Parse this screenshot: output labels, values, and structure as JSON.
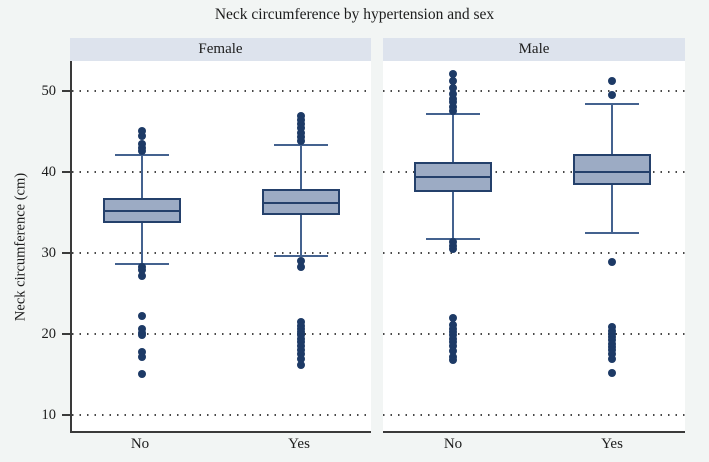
{
  "chart_data": {
    "type": "boxplot",
    "title": "Neck circumference by hypertension and sex",
    "ylabel": "Neck circumference (cm)",
    "xlabel": "",
    "ylim": [
      8,
      53.7
    ],
    "yticks": [
      10,
      20,
      30,
      40,
      50
    ],
    "grid": "horizontal dotted lines at each y tick",
    "legend": "none",
    "categories": [
      "No",
      "Yes"
    ],
    "panels": [
      {
        "label": "Female",
        "boxes": [
          {
            "category": "No",
            "whisker_low": 28.6,
            "q1": 33.7,
            "median": 35.2,
            "q3": 36.8,
            "whisker_high": 42.1,
            "outliers_high": [
              42.6,
              43.0,
              43.5,
              44.4,
              45.1
            ],
            "outliers_low": [
              28.3,
              27.9,
              27.2,
              22.2,
              20.6,
              20.1,
              19.8,
              17.7,
              17.1,
              15.1
            ]
          },
          {
            "category": "Yes",
            "whisker_low": 29.6,
            "q1": 34.7,
            "median": 36.2,
            "q3": 37.9,
            "whisker_high": 43.3,
            "outliers_high": [
              43.8,
              44.3,
              44.8,
              45.4,
              45.9,
              46.4,
              46.9
            ],
            "outliers_low": [
              29.0,
              28.3,
              21.5,
              21.0,
              20.6,
              20.2,
              19.8,
              19.4,
              19.0,
              18.5,
              18.0,
              17.5,
              16.9,
              16.2
            ]
          }
        ]
      },
      {
        "label": "Male",
        "boxes": [
          {
            "category": "No",
            "whisker_low": 31.7,
            "q1": 37.5,
            "median": 39.4,
            "q3": 41.2,
            "whisker_high": 47.2,
            "outliers_high": [
              47.5,
              48.0,
              48.6,
              49.0,
              49.6,
              50.4,
              51.2,
              52.1
            ],
            "outliers_low": [
              31.4,
              30.9,
              30.5,
              21.9,
              21.1,
              20.6,
              20.2,
              19.8,
              19.4,
              19.0,
              18.5,
              17.9,
              17.2,
              16.8
            ]
          },
          {
            "category": "Yes",
            "whisker_low": 32.4,
            "q1": 38.4,
            "median": 40.0,
            "q3": 42.2,
            "whisker_high": 48.4,
            "outliers_high": [
              49.5,
              51.2
            ],
            "outliers_low": [
              28.9,
              20.8,
              20.4,
              20.0,
              19.6,
              19.2,
              18.8,
              18.4,
              18.0,
              17.5,
              16.9,
              15.2
            ]
          }
        ]
      }
    ],
    "colors": {
      "figure_background": "#f2f5f4",
      "plot_background": "#ffffff",
      "panel_header_background": "#dde3ed",
      "box_fill": "#9cabc4",
      "box_border": "#24406b",
      "median": "#24406b",
      "whisker": "#44628f",
      "outlier": "#1d3a66",
      "axis": "#3a3a3a",
      "grid": "#474747",
      "text": "#1c1c1c"
    }
  }
}
